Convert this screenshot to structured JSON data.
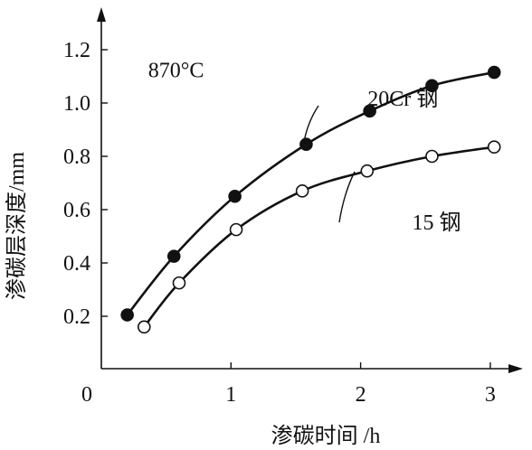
{
  "colors": {
    "ink": "#111111",
    "background": "#ffffff"
  },
  "chart_data": {
    "type": "line",
    "title": "",
    "xlabel": "渗碳时间 /h",
    "ylabel": "渗碳层深度/mm",
    "xlim": [
      0,
      3.2
    ],
    "ylim": [
      0.1,
      1.3
    ],
    "x_ticks": [
      0,
      1,
      2,
      3
    ],
    "x_tick_labels": [
      "0",
      "1",
      "2",
      "3"
    ],
    "y_ticks": [
      0.2,
      0.4,
      0.6,
      0.8,
      1.0,
      1.2
    ],
    "y_tick_labels": [
      "0.2",
      "0.4",
      "0.6",
      "0.8",
      "1.0",
      "1.2"
    ],
    "grid": false,
    "legend": "none",
    "annotations": [
      {
        "text": "870°C",
        "x": 0.78,
        "y": 1.13
      },
      {
        "text": "20Cr 钢",
        "x": 1.6,
        "y": 1.04
      },
      {
        "text": "15 钢",
        "x": 1.65,
        "y": 0.55
      }
    ],
    "series": [
      {
        "name": "20Cr 钢",
        "marker": "filled-circle",
        "x": [
          0.2,
          0.56,
          1.03,
          1.58,
          2.07,
          2.55,
          3.03
        ],
        "y": [
          0.205,
          0.425,
          0.65,
          0.845,
          0.97,
          1.065,
          1.115
        ]
      },
      {
        "name": "15 钢",
        "marker": "open-circle",
        "x": [
          0.33,
          0.6,
          1.04,
          1.55,
          2.05,
          2.55,
          3.03
        ],
        "y": [
          0.16,
          0.325,
          0.525,
          0.67,
          0.745,
          0.8,
          0.835
        ]
      }
    ]
  }
}
